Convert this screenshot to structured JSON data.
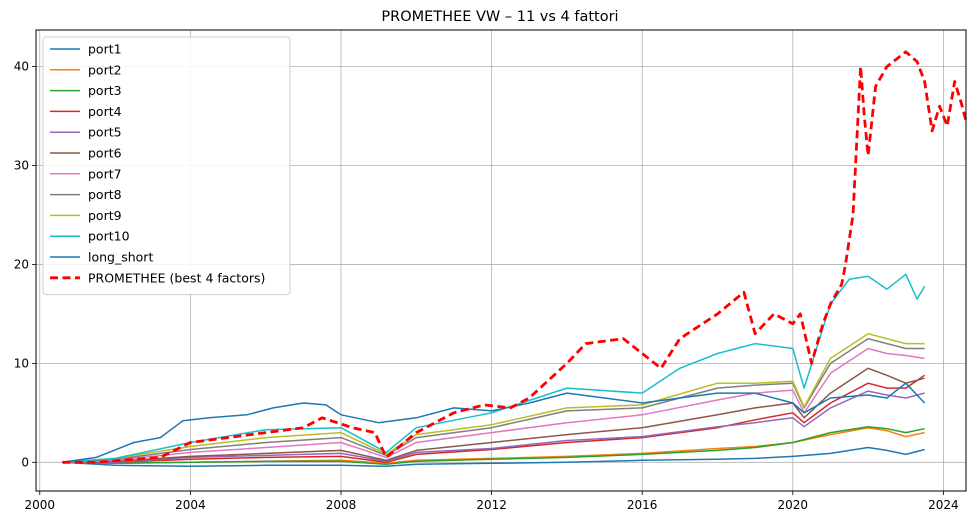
{
  "chart_data": {
    "type": "line",
    "title": "PROMETHEE VW – 11 vs 4 fattori",
    "xlabel": "",
    "ylabel": "",
    "xlim": [
      1999.9,
      2024.6
    ],
    "ylim": [
      -2.9,
      43.7
    ],
    "x_ticks": [
      2000,
      2004,
      2008,
      2012,
      2016,
      2020,
      2024
    ],
    "x_tick_labels": [
      "2000",
      "2004",
      "2008",
      "2012",
      "2016",
      "2020",
      "2024"
    ],
    "y_ticks": [
      0,
      10,
      20,
      30,
      40
    ],
    "y_tick_labels": [
      "0",
      "10",
      "20",
      "30",
      "40"
    ],
    "grid": true,
    "legend_position": "top-left",
    "series": [
      {
        "name": "port1",
        "color": "#1f77b4",
        "dash": "",
        "width": 1.5,
        "points": [
          [
            2000.6,
            0
          ],
          [
            2002,
            -0.3
          ],
          [
            2004,
            -0.4
          ],
          [
            2006,
            -0.3
          ],
          [
            2008,
            -0.3
          ],
          [
            2009.2,
            -0.4
          ],
          [
            2010,
            -0.2
          ],
          [
            2012,
            -0.1
          ],
          [
            2014,
            0
          ],
          [
            2016,
            0.2
          ],
          [
            2018,
            0.3
          ],
          [
            2019,
            0.4
          ],
          [
            2020,
            0.6
          ],
          [
            2021,
            0.9
          ],
          [
            2022,
            1.5
          ],
          [
            2022.5,
            1.2
          ],
          [
            2023,
            0.8
          ],
          [
            2023.5,
            1.3
          ]
        ]
      },
      {
        "name": "port2",
        "color": "#ff7f0e",
        "dash": "",
        "width": 1.5,
        "points": [
          [
            2000.6,
            0
          ],
          [
            2002,
            -0.1
          ],
          [
            2004,
            0
          ],
          [
            2006,
            0.1
          ],
          [
            2008,
            0.2
          ],
          [
            2009.2,
            -0.1
          ],
          [
            2010,
            0.2
          ],
          [
            2012,
            0.4
          ],
          [
            2014,
            0.6
          ],
          [
            2016,
            0.9
          ],
          [
            2018,
            1.4
          ],
          [
            2019,
            1.6
          ],
          [
            2020,
            2
          ],
          [
            2021,
            2.8
          ],
          [
            2022,
            3.5
          ],
          [
            2022.5,
            3.2
          ],
          [
            2023,
            2.6
          ],
          [
            2023.5,
            3
          ]
        ]
      },
      {
        "name": "port3",
        "color": "#2ca02c",
        "dash": "",
        "width": 1.5,
        "points": [
          [
            2000.6,
            0
          ],
          [
            2002,
            -0.1
          ],
          [
            2004,
            0
          ],
          [
            2006,
            0.1
          ],
          [
            2008,
            0.1
          ],
          [
            2009.2,
            -0.2
          ],
          [
            2010,
            0.1
          ],
          [
            2012,
            0.3
          ],
          [
            2014,
            0.5
          ],
          [
            2016,
            0.8
          ],
          [
            2018,
            1.2
          ],
          [
            2019,
            1.5
          ],
          [
            2020,
            2
          ],
          [
            2021,
            3
          ],
          [
            2022,
            3.6
          ],
          [
            2022.5,
            3.4
          ],
          [
            2023,
            3
          ],
          [
            2023.5,
            3.4
          ]
        ]
      },
      {
        "name": "port4",
        "color": "#d62728",
        "dash": "",
        "width": 1.5,
        "points": [
          [
            2000.6,
            0
          ],
          [
            2002,
            0
          ],
          [
            2004,
            0.3
          ],
          [
            2006,
            0.5
          ],
          [
            2008,
            0.6
          ],
          [
            2009.2,
            0
          ],
          [
            2010,
            0.8
          ],
          [
            2012,
            1.3
          ],
          [
            2014,
            2
          ],
          [
            2016,
            2.5
          ],
          [
            2018,
            3.5
          ],
          [
            2019,
            4.3
          ],
          [
            2020,
            5
          ],
          [
            2020.3,
            4
          ],
          [
            2021,
            6
          ],
          [
            2022,
            8
          ],
          [
            2022.5,
            7.5
          ],
          [
            2023,
            7.5
          ],
          [
            2023.5,
            8.8
          ]
        ]
      },
      {
        "name": "port5",
        "color": "#9467bd",
        "dash": "",
        "width": 1.5,
        "points": [
          [
            2000.6,
            0
          ],
          [
            2002,
            0
          ],
          [
            2004,
            0.5
          ],
          [
            2006,
            0.7
          ],
          [
            2008,
            0.9
          ],
          [
            2009.2,
            0.1
          ],
          [
            2010,
            1
          ],
          [
            2012,
            1.4
          ],
          [
            2014,
            2.2
          ],
          [
            2016,
            2.6
          ],
          [
            2018,
            3.6
          ],
          [
            2019,
            4
          ],
          [
            2020,
            4.5
          ],
          [
            2020.3,
            3.6
          ],
          [
            2021,
            5.5
          ],
          [
            2022,
            7.2
          ],
          [
            2022.5,
            6.8
          ],
          [
            2023,
            6.5
          ],
          [
            2023.5,
            7
          ]
        ]
      },
      {
        "name": "port6",
        "color": "#8c564b",
        "dash": "",
        "width": 1.5,
        "points": [
          [
            2000.6,
            0
          ],
          [
            2002,
            0.1
          ],
          [
            2004,
            0.6
          ],
          [
            2006,
            0.9
          ],
          [
            2008,
            1.2
          ],
          [
            2009.2,
            0.2
          ],
          [
            2010,
            1.2
          ],
          [
            2012,
            2
          ],
          [
            2014,
            2.8
          ],
          [
            2016,
            3.5
          ],
          [
            2018,
            4.8
          ],
          [
            2019,
            5.5
          ],
          [
            2020,
            6
          ],
          [
            2020.3,
            4.5
          ],
          [
            2021,
            7
          ],
          [
            2022,
            9.5
          ],
          [
            2022.5,
            8.8
          ],
          [
            2023,
            8
          ],
          [
            2023.5,
            8.5
          ]
        ]
      },
      {
        "name": "port7",
        "color": "#e377c2",
        "dash": "",
        "width": 1.5,
        "points": [
          [
            2000.6,
            0
          ],
          [
            2002,
            0.2
          ],
          [
            2004,
            1
          ],
          [
            2006,
            1.5
          ],
          [
            2008,
            2
          ],
          [
            2009.2,
            0.5
          ],
          [
            2010,
            2
          ],
          [
            2012,
            3
          ],
          [
            2014,
            4
          ],
          [
            2016,
            4.8
          ],
          [
            2018,
            6.3
          ],
          [
            2019,
            7
          ],
          [
            2020,
            7.3
          ],
          [
            2020.3,
            5
          ],
          [
            2021,
            9
          ],
          [
            2022,
            11.5
          ],
          [
            2022.5,
            11
          ],
          [
            2023,
            10.8
          ],
          [
            2023.5,
            10.5
          ]
        ]
      },
      {
        "name": "port8",
        "color": "#7f7f7f",
        "dash": "",
        "width": 1.5,
        "points": [
          [
            2000.6,
            0
          ],
          [
            2002,
            0.3
          ],
          [
            2004,
            1.3
          ],
          [
            2006,
            2
          ],
          [
            2008,
            2.5
          ],
          [
            2009.2,
            0.7
          ],
          [
            2010,
            2.5
          ],
          [
            2012,
            3.5
          ],
          [
            2014,
            5.2
          ],
          [
            2016,
            5.5
          ],
          [
            2018,
            7.5
          ],
          [
            2019,
            7.8
          ],
          [
            2020,
            8
          ],
          [
            2020.3,
            5.5
          ],
          [
            2021,
            10
          ],
          [
            2022,
            12.5
          ],
          [
            2022.5,
            12
          ],
          [
            2023,
            11.5
          ],
          [
            2023.5,
            11.5
          ]
        ]
      },
      {
        "name": "port9",
        "color": "#bcbd22",
        "dash": "",
        "width": 1.5,
        "points": [
          [
            2000.6,
            0
          ],
          [
            2002,
            0.4
          ],
          [
            2004,
            1.6
          ],
          [
            2006,
            2.5
          ],
          [
            2008,
            3
          ],
          [
            2009.2,
            0.8
          ],
          [
            2010,
            2.8
          ],
          [
            2012,
            3.8
          ],
          [
            2014,
            5.5
          ],
          [
            2016,
            5.8
          ],
          [
            2018,
            8
          ],
          [
            2019,
            8
          ],
          [
            2020,
            8.2
          ],
          [
            2020.3,
            5.6
          ],
          [
            2021,
            10.5
          ],
          [
            2022,
            13
          ],
          [
            2022.5,
            12.5
          ],
          [
            2023,
            12
          ],
          [
            2023.5,
            12
          ]
        ]
      },
      {
        "name": "port10",
        "color": "#17becf",
        "dash": "",
        "width": 1.5,
        "points": [
          [
            2000.6,
            0
          ],
          [
            2002,
            0.4
          ],
          [
            2004,
            2
          ],
          [
            2006,
            3.3
          ],
          [
            2008,
            3.5
          ],
          [
            2009.2,
            1
          ],
          [
            2010,
            3.5
          ],
          [
            2012,
            5
          ],
          [
            2014,
            7.5
          ],
          [
            2016,
            7
          ],
          [
            2017,
            9.5
          ],
          [
            2018,
            11
          ],
          [
            2019,
            12
          ],
          [
            2020,
            11.5
          ],
          [
            2020.3,
            7.5
          ],
          [
            2021,
            16
          ],
          [
            2021.5,
            18.5
          ],
          [
            2022,
            18.8
          ],
          [
            2022.5,
            17.5
          ],
          [
            2023,
            19
          ],
          [
            2023.3,
            16.5
          ],
          [
            2023.5,
            17.8
          ]
        ]
      },
      {
        "name": "long_short",
        "color": "#1f77b4",
        "dash": "",
        "width": 1.5,
        "points": [
          [
            2000.6,
            0
          ],
          [
            2001.5,
            0.5
          ],
          [
            2002.5,
            2
          ],
          [
            2003.2,
            2.5
          ],
          [
            2003.8,
            4.2
          ],
          [
            2004.5,
            4.5
          ],
          [
            2005.5,
            4.8
          ],
          [
            2006.2,
            5.5
          ],
          [
            2007,
            6
          ],
          [
            2007.6,
            5.8
          ],
          [
            2008,
            4.8
          ],
          [
            2009,
            4
          ],
          [
            2010,
            4.5
          ],
          [
            2011,
            5.5
          ],
          [
            2012,
            5.2
          ],
          [
            2013,
            6
          ],
          [
            2014,
            7
          ],
          [
            2015,
            6.5
          ],
          [
            2016,
            6
          ],
          [
            2017,
            6.5
          ],
          [
            2018,
            7
          ],
          [
            2019,
            7
          ],
          [
            2020,
            6
          ],
          [
            2020.3,
            5
          ],
          [
            2021,
            6.5
          ],
          [
            2022,
            6.8
          ],
          [
            2022.5,
            6.5
          ],
          [
            2023,
            8
          ],
          [
            2023.5,
            6
          ]
        ]
      },
      {
        "name": "PROMETHEE (best 4 factors)",
        "color": "#ff0000",
        "dash": "8,4.5",
        "width": 2.8,
        "points": [
          [
            2000.6,
            0
          ],
          [
            2001.5,
            0
          ],
          [
            2002.5,
            0.3
          ],
          [
            2003.2,
            0.5
          ],
          [
            2004,
            2
          ],
          [
            2005,
            2.5
          ],
          [
            2006,
            3
          ],
          [
            2007,
            3.5
          ],
          [
            2007.5,
            4.5
          ],
          [
            2008.3,
            3.5
          ],
          [
            2008.9,
            3
          ],
          [
            2009.2,
            0.5
          ],
          [
            2010,
            3
          ],
          [
            2011,
            5
          ],
          [
            2011.8,
            5.8
          ],
          [
            2012.5,
            5.5
          ],
          [
            2013,
            6.5
          ],
          [
            2014,
            10
          ],
          [
            2014.5,
            12
          ],
          [
            2015.5,
            12.5
          ],
          [
            2016,
            11
          ],
          [
            2016.5,
            9.5
          ],
          [
            2017,
            12.5
          ],
          [
            2018,
            15
          ],
          [
            2018.7,
            17.2
          ],
          [
            2019,
            13
          ],
          [
            2019.5,
            15
          ],
          [
            2020,
            14
          ],
          [
            2020.2,
            15
          ],
          [
            2020.5,
            10
          ],
          [
            2020.8,
            14
          ],
          [
            2021,
            16
          ],
          [
            2021.3,
            18
          ],
          [
            2021.4,
            20
          ],
          [
            2021.6,
            25
          ],
          [
            2021.8,
            40
          ],
          [
            2021.9,
            35
          ],
          [
            2022,
            31
          ],
          [
            2022.2,
            38
          ],
          [
            2022.5,
            40
          ],
          [
            2023,
            41.5
          ],
          [
            2023.3,
            40.5
          ],
          [
            2023.5,
            38.5
          ],
          [
            2023.7,
            33.5
          ],
          [
            2023.9,
            36
          ],
          [
            2024.1,
            34
          ],
          [
            2024.3,
            38.5
          ],
          [
            2024.5,
            36
          ],
          [
            2024.6,
            34.5
          ]
        ]
      }
    ]
  }
}
